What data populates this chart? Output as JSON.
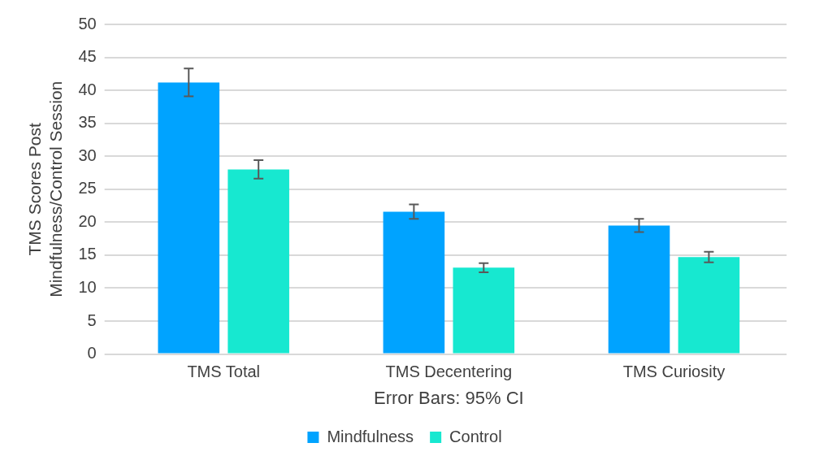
{
  "chart_data": {
    "type": "bar",
    "xlabel": "Error Bars: 95% CI",
    "ylabel": "TMS Scores Post Mindfulness/Control Session",
    "categories": [
      "TMS Total",
      "TMS Decentering",
      "TMS Curiosity"
    ],
    "series": [
      {
        "name": "Mindfulness",
        "color": "#00a3ff",
        "values": [
          41.2,
          21.6,
          19.5
        ],
        "errors": [
          2.1,
          1.1,
          1.0
        ]
      },
      {
        "name": "Control",
        "color": "#17e8d0",
        "values": [
          28.0,
          13.1,
          14.7
        ],
        "errors": [
          1.4,
          0.7,
          0.8
        ]
      }
    ],
    "ylim": [
      0,
      50
    ],
    "yticks": [
      0,
      5,
      10,
      15,
      20,
      25,
      30,
      35,
      40,
      45,
      50
    ],
    "grid": "y",
    "legend": "bottom"
  }
}
